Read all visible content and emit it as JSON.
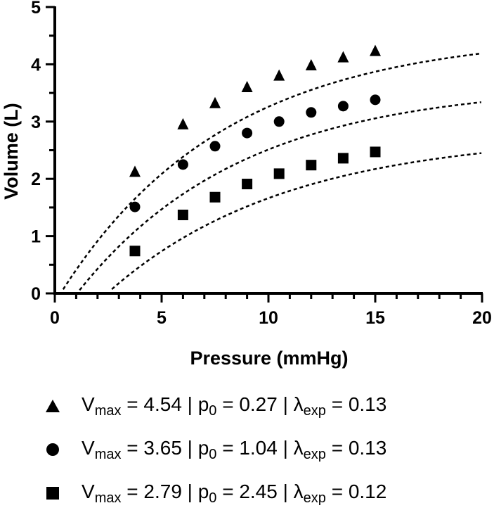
{
  "chart_data": {
    "type": "scatter",
    "xlabel": "Pressure (mmHg)",
    "ylabel": "Volume (L)",
    "xlim": [
      0,
      20
    ],
    "ylim": [
      0,
      5
    ],
    "xticks": [
      "0",
      "5",
      "10",
      "15",
      "20"
    ],
    "yticks": [
      "0",
      "1",
      "2",
      "3",
      "4",
      "5"
    ],
    "grid": false,
    "legend_position": "bottom",
    "series": [
      {
        "marker": "triangle",
        "x": [
          3.75,
          6,
          7.5,
          9,
          10.5,
          12,
          13.5,
          15
        ],
        "y": [
          2.12,
          2.95,
          3.32,
          3.6,
          3.8,
          3.98,
          4.12,
          4.23
        ],
        "fit": {
          "Vmax": 4.54,
          "p0": 0.27,
          "lambda": 0.13
        },
        "legend": {
          "V": "V",
          "max": "max",
          "a": " = 4.54 | p",
          "zero": "0",
          "b": " = 0.27 | λ",
          "exp": "exp",
          "c": " = 0.13"
        }
      },
      {
        "marker": "circle",
        "x": [
          3.75,
          6,
          7.5,
          9,
          10.5,
          12,
          13.5,
          15
        ],
        "y": [
          1.51,
          2.25,
          2.57,
          2.8,
          3.0,
          3.16,
          3.27,
          3.38
        ],
        "fit": {
          "Vmax": 3.65,
          "p0": 1.04,
          "lambda": 0.13
        },
        "legend": {
          "V": "V",
          "max": "max",
          "a": " = 3.65 | p",
          "zero": "0",
          "b": " = 1.04 | λ",
          "exp": "exp",
          "c": " = 0.13"
        }
      },
      {
        "marker": "square",
        "x": [
          3.75,
          6,
          7.5,
          9,
          10.5,
          12,
          13.5,
          15
        ],
        "y": [
          0.74,
          1.37,
          1.68,
          1.91,
          2.09,
          2.24,
          2.36,
          2.47
        ],
        "fit": {
          "Vmax": 2.79,
          "p0": 2.45,
          "lambda": 0.12
        },
        "legend": {
          "V": "V",
          "max": "max",
          "a": " = 2.79 | p",
          "zero": "0",
          "b": " = 2.45 | λ",
          "exp": "exp",
          "c": " = 0.12"
        }
      }
    ]
  }
}
